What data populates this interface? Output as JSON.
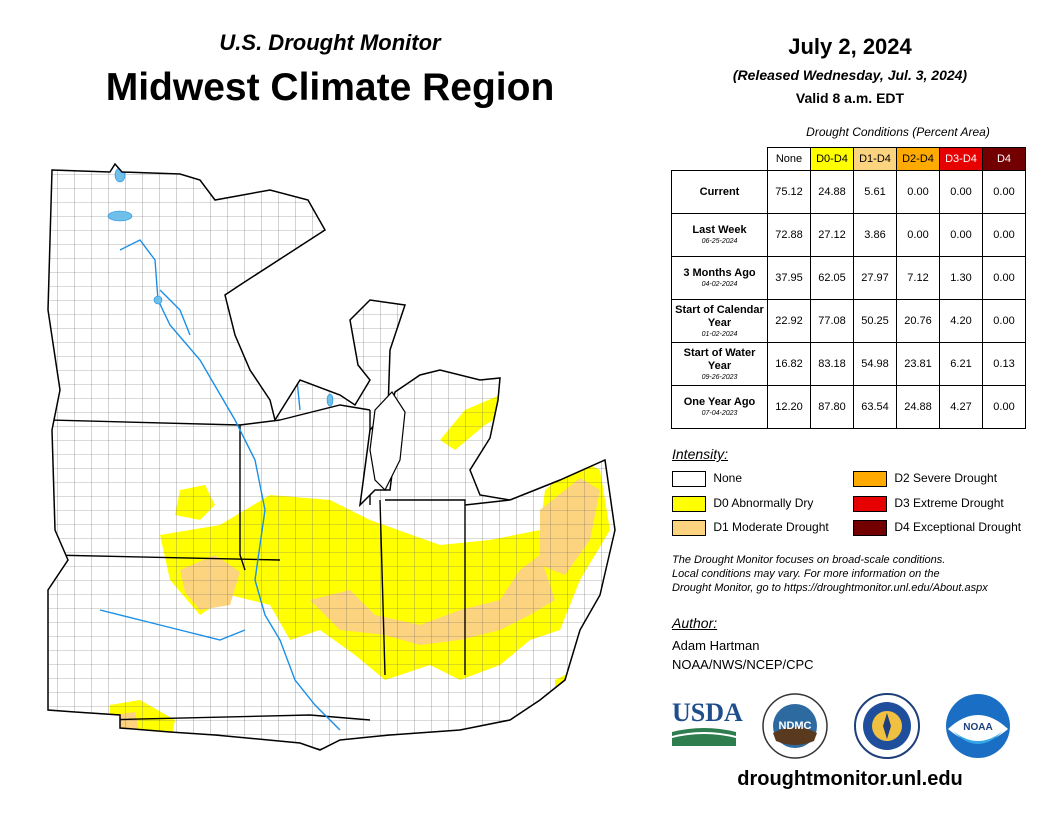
{
  "header": {
    "subtitle": "U.S. Drought Monitor",
    "title": "Midwest Climate Region",
    "date": "July 2, 2024",
    "released": "(Released Wednesday, Jul. 3, 2024)",
    "valid": "Valid 8 a.m. EDT"
  },
  "table": {
    "caption": "Drought Conditions (Percent Area)",
    "columns": [
      {
        "label": "None",
        "color": "#ffffff",
        "text_color": "#000000"
      },
      {
        "label": "D0-D4",
        "color": "#ffff00",
        "text_color": "#000000"
      },
      {
        "label": "D1-D4",
        "color": "#fcd37f",
        "text_color": "#000000"
      },
      {
        "label": "D2-D4",
        "color": "#ffaa00",
        "text_color": "#000000"
      },
      {
        "label": "D3-D4",
        "color": "#e60000",
        "text_color": "#ffffff"
      },
      {
        "label": "D4",
        "color": "#730000",
        "text_color": "#ffffff"
      }
    ],
    "rows": [
      {
        "label": "Current",
        "date": "",
        "values": [
          "75.12",
          "24.88",
          "5.61",
          "0.00",
          "0.00",
          "0.00"
        ]
      },
      {
        "label": "Last Week",
        "date": "06-25-2024",
        "values": [
          "72.88",
          "27.12",
          "3.86",
          "0.00",
          "0.00",
          "0.00"
        ]
      },
      {
        "label": "3 Months Ago",
        "date": "04-02-2024",
        "values": [
          "37.95",
          "62.05",
          "27.97",
          "7.12",
          "1.30",
          "0.00"
        ]
      },
      {
        "label": "Start of Calendar Year",
        "date": "01-02-2024",
        "values": [
          "22.92",
          "77.08",
          "50.25",
          "20.76",
          "4.20",
          "0.00"
        ]
      },
      {
        "label": "Start of Water Year",
        "date": "09-26-2023",
        "values": [
          "16.82",
          "83.18",
          "54.98",
          "23.81",
          "6.21",
          "0.13"
        ]
      },
      {
        "label": "One Year Ago",
        "date": "07-04-2023",
        "values": [
          "12.20",
          "87.80",
          "63.54",
          "24.88",
          "4.27",
          "0.00"
        ]
      }
    ]
  },
  "legend": {
    "title": "Intensity:",
    "items": [
      {
        "label": "None",
        "color": "#ffffff"
      },
      {
        "label": "D0 Abnormally Dry",
        "color": "#ffff00"
      },
      {
        "label": "D1 Moderate Drought",
        "color": "#fcd37f"
      },
      {
        "label": "D2 Severe Drought",
        "color": "#ffaa00"
      },
      {
        "label": "D3 Extreme Drought",
        "color": "#e60000"
      },
      {
        "label": "D4 Exceptional Drought",
        "color": "#730000"
      }
    ]
  },
  "note": {
    "line1": "The Drought Monitor focuses on broad-scale conditions.",
    "line2": "Local conditions may vary. For more information on the",
    "line3": "Drought Monitor, go to https://droughtmonitor.unl.edu/About.aspx"
  },
  "author": {
    "title": "Author:",
    "name": "Adam Hartman",
    "org": "NOAA/NWS/NCEP/CPC"
  },
  "logos": {
    "usda": "USDA",
    "ndmc": "NDMC",
    "noaa": "NOAA"
  },
  "footer": {
    "url": "droughtmonitor.unl.edu"
  }
}
